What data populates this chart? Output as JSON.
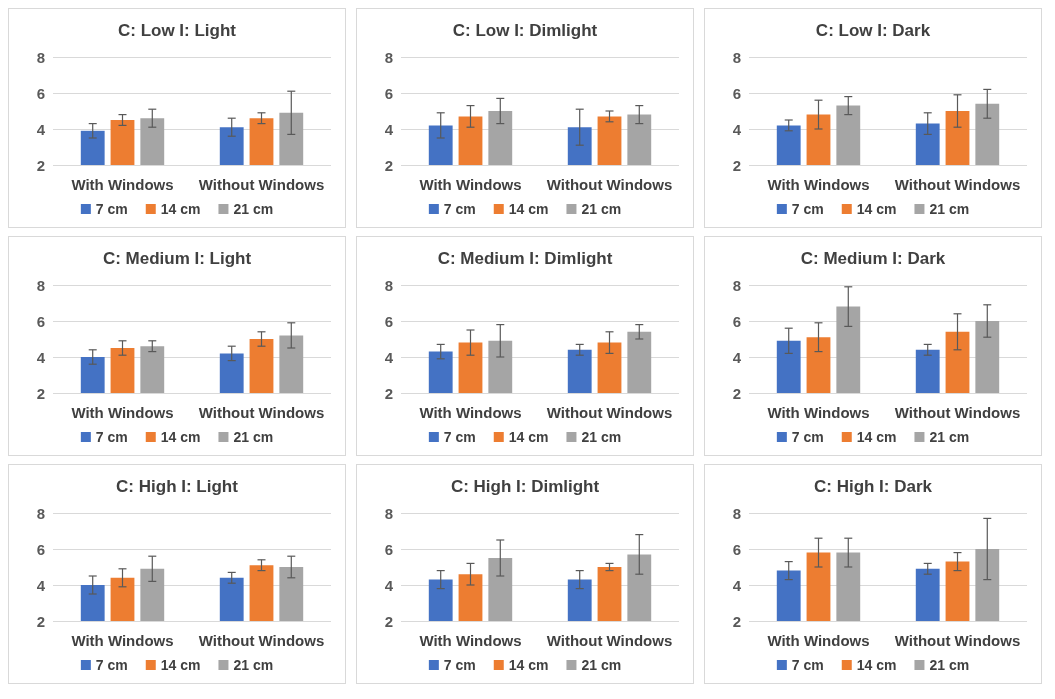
{
  "chart_data": [
    {
      "type": "bar",
      "title": "C: Low I: Light",
      "categories": [
        "With Windows",
        "Without Windows"
      ],
      "ylim": [
        2,
        8
      ],
      "yticks": [
        2,
        4,
        6,
        8
      ],
      "grid": "y",
      "legend": "bottom",
      "series": [
        {
          "name": "7 cm",
          "color": "#4472c4",
          "values": [
            3.9,
            4.1
          ],
          "errors": [
            0.4,
            0.5
          ]
        },
        {
          "name": "14 cm",
          "color": "#ed7d31",
          "values": [
            4.5,
            4.6
          ],
          "errors": [
            0.3,
            0.3
          ]
        },
        {
          "name": "21 cm",
          "color": "#a5a5a5",
          "values": [
            4.6,
            4.9
          ],
          "errors": [
            0.5,
            1.2
          ]
        }
      ]
    },
    {
      "type": "bar",
      "title": "C: Low I: Dimlight",
      "categories": [
        "With Windows",
        "Without Windows"
      ],
      "ylim": [
        2,
        8
      ],
      "yticks": [
        2,
        4,
        6,
        8
      ],
      "grid": "y",
      "legend": "bottom",
      "series": [
        {
          "name": "7 cm",
          "color": "#4472c4",
          "values": [
            4.2,
            4.1
          ],
          "errors": [
            0.7,
            1.0
          ]
        },
        {
          "name": "14 cm",
          "color": "#ed7d31",
          "values": [
            4.7,
            4.7
          ],
          "errors": [
            0.6,
            0.3
          ]
        },
        {
          "name": "21 cm",
          "color": "#a5a5a5",
          "values": [
            5.0,
            4.8
          ],
          "errors": [
            0.7,
            0.5
          ]
        }
      ]
    },
    {
      "type": "bar",
      "title": "C: Low I: Dark",
      "categories": [
        "With Windows",
        "Without Windows"
      ],
      "ylim": [
        2,
        8
      ],
      "yticks": [
        2,
        4,
        6,
        8
      ],
      "grid": "y",
      "legend": "bottom",
      "series": [
        {
          "name": "7 cm",
          "color": "#4472c4",
          "values": [
            4.2,
            4.3
          ],
          "errors": [
            0.3,
            0.6
          ]
        },
        {
          "name": "14 cm",
          "color": "#ed7d31",
          "values": [
            4.8,
            5.0
          ],
          "errors": [
            0.8,
            0.9
          ]
        },
        {
          "name": "21 cm",
          "color": "#a5a5a5",
          "values": [
            5.3,
            5.4
          ],
          "errors": [
            0.5,
            0.8
          ]
        }
      ]
    },
    {
      "type": "bar",
      "title": "C: Medium I: Light",
      "categories": [
        "With Windows",
        "Without Windows"
      ],
      "ylim": [
        2,
        8
      ],
      "yticks": [
        2,
        4,
        6,
        8
      ],
      "grid": "y",
      "legend": "bottom",
      "series": [
        {
          "name": "7 cm",
          "color": "#4472c4",
          "values": [
            4.0,
            4.2
          ],
          "errors": [
            0.4,
            0.4
          ]
        },
        {
          "name": "14 cm",
          "color": "#ed7d31",
          "values": [
            4.5,
            5.0
          ],
          "errors": [
            0.4,
            0.4
          ]
        },
        {
          "name": "21 cm",
          "color": "#a5a5a5",
          "values": [
            4.6,
            5.2
          ],
          "errors": [
            0.3,
            0.7
          ]
        }
      ]
    },
    {
      "type": "bar",
      "title": "C: Medium I: Dimlight",
      "categories": [
        "With Windows",
        "Without Windows"
      ],
      "ylim": [
        2,
        8
      ],
      "yticks": [
        2,
        4,
        6,
        8
      ],
      "grid": "y",
      "legend": "bottom",
      "series": [
        {
          "name": "7 cm",
          "color": "#4472c4",
          "values": [
            4.3,
            4.4
          ],
          "errors": [
            0.4,
            0.3
          ]
        },
        {
          "name": "14 cm",
          "color": "#ed7d31",
          "values": [
            4.8,
            4.8
          ],
          "errors": [
            0.7,
            0.6
          ]
        },
        {
          "name": "21 cm",
          "color": "#a5a5a5",
          "values": [
            4.9,
            5.4
          ],
          "errors": [
            0.9,
            0.4
          ]
        }
      ]
    },
    {
      "type": "bar",
      "title": "C: Medium I: Dark",
      "categories": [
        "With Windows",
        "Without Windows"
      ],
      "ylim": [
        2,
        8
      ],
      "yticks": [
        2,
        4,
        6,
        8
      ],
      "grid": "y",
      "legend": "bottom",
      "series": [
        {
          "name": "7 cm",
          "color": "#4472c4",
          "values": [
            4.9,
            4.4
          ],
          "errors": [
            0.7,
            0.3
          ]
        },
        {
          "name": "14 cm",
          "color": "#ed7d31",
          "values": [
            5.1,
            5.4
          ],
          "errors": [
            0.8,
            1.0
          ]
        },
        {
          "name": "21 cm",
          "color": "#a5a5a5",
          "values": [
            6.8,
            6.0
          ],
          "errors": [
            1.1,
            0.9
          ]
        }
      ]
    },
    {
      "type": "bar",
      "title": "C: High I: Light",
      "categories": [
        "With Windows",
        "Without Windows"
      ],
      "ylim": [
        2,
        8
      ],
      "yticks": [
        2,
        4,
        6,
        8
      ],
      "grid": "y",
      "legend": "bottom",
      "series": [
        {
          "name": "7 cm",
          "color": "#4472c4",
          "values": [
            4.0,
            4.4
          ],
          "errors": [
            0.5,
            0.3
          ]
        },
        {
          "name": "14 cm",
          "color": "#ed7d31",
          "values": [
            4.4,
            5.1
          ],
          "errors": [
            0.5,
            0.3
          ]
        },
        {
          "name": "21 cm",
          "color": "#a5a5a5",
          "values": [
            4.9,
            5.0
          ],
          "errors": [
            0.7,
            0.6
          ]
        }
      ]
    },
    {
      "type": "bar",
      "title": "C: High I: Dimlight",
      "categories": [
        "With Windows",
        "Without Windows"
      ],
      "ylim": [
        2,
        8
      ],
      "yticks": [
        2,
        4,
        6,
        8
      ],
      "grid": "y",
      "legend": "bottom",
      "series": [
        {
          "name": "7 cm",
          "color": "#4472c4",
          "values": [
            4.3,
            4.3
          ],
          "errors": [
            0.5,
            0.5
          ]
        },
        {
          "name": "14 cm",
          "color": "#ed7d31",
          "values": [
            4.6,
            5.0
          ],
          "errors": [
            0.6,
            0.2
          ]
        },
        {
          "name": "21 cm",
          "color": "#a5a5a5",
          "values": [
            5.5,
            5.7
          ],
          "errors": [
            1.0,
            1.1
          ]
        }
      ]
    },
    {
      "type": "bar",
      "title": "C: High I: Dark",
      "categories": [
        "With Windows",
        "Without Windows"
      ],
      "ylim": [
        2,
        8
      ],
      "yticks": [
        2,
        4,
        6,
        8
      ],
      "grid": "y",
      "legend": "bottom",
      "series": [
        {
          "name": "7 cm",
          "color": "#4472c4",
          "values": [
            4.8,
            4.9
          ],
          "errors": [
            0.5,
            0.3
          ]
        },
        {
          "name": "14 cm",
          "color": "#ed7d31",
          "values": [
            5.8,
            5.3
          ],
          "errors": [
            0.8,
            0.5
          ]
        },
        {
          "name": "21 cm",
          "color": "#a5a5a5",
          "values": [
            5.8,
            6.0
          ],
          "errors": [
            0.8,
            1.7
          ]
        }
      ]
    }
  ]
}
